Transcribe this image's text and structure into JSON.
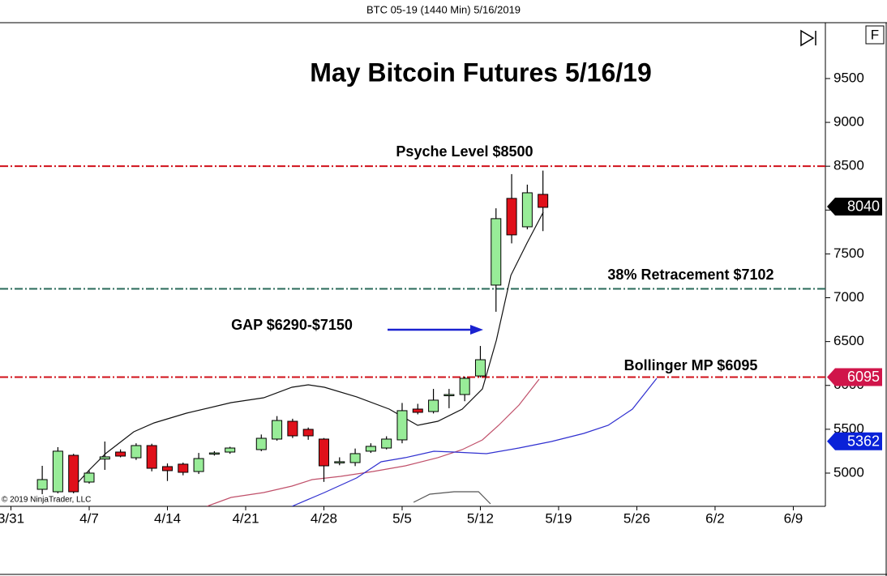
{
  "header": "BTC 05-19 (1440 Min)  5/16/2019",
  "ui": {
    "f_button": "F"
  },
  "copyright": "© 2019 NinjaTrader, LLC",
  "chart_data": {
    "type": "candlestick",
    "title": "May Bitcoin Futures 5/16/19",
    "open": [
      4815,
      4787,
      5203,
      4898,
      5160,
      5240,
      5175,
      5314,
      5074,
      5102,
      5018,
      5222,
      5240,
      null,
      5268,
      5388,
      5591,
      5499,
      5388,
      5120,
      5120,
      5250,
      5286,
      5379,
      5730,
      5702,
      5890,
      5896,
      6108,
      7144,
      8133,
      7809,
      8179
    ],
    "high": [
      5083,
      5296,
      5220,
      5030,
      5360,
      5270,
      5340,
      5335,
      5110,
      5120,
      5230,
      5250,
      5300,
      null,
      5440,
      5650,
      5620,
      5520,
      5400,
      5180,
      5280,
      5340,
      5420,
      5800,
      5790,
      5960,
      5960,
      6100,
      6450,
      8020,
      8410,
      8290,
      8450
    ],
    "low": [
      4760,
      4769,
      4769,
      4880,
      5037,
      5180,
      5150,
      5020,
      4910,
      4975,
      4990,
      5200,
      5220,
      null,
      5250,
      5370,
      5400,
      5380,
      4900,
      5090,
      5080,
      5230,
      5270,
      5340,
      5670,
      5680,
      5740,
      5820,
      6090,
      6840,
      7620,
      7780,
      7760
    ],
    "close": [
      4926,
      5250,
      4787,
      5000,
      5185,
      5194,
      5314,
      5055,
      5028,
      5009,
      5166,
      5230,
      5286,
      null,
      5397,
      5600,
      5425,
      5425,
      5083,
      5130,
      5222,
      5305,
      5388,
      5712,
      5693,
      5832,
      5896,
      6081,
      6293,
      7902,
      7717,
      8197,
      8031
    ],
    "up_color": "#98ec98",
    "down_color": "#e0101a",
    "xlim": [
      -2.7,
      50.05
    ],
    "xticks": [
      {
        "value": -2,
        "label": "3/31"
      },
      {
        "value": 3,
        "label": "4/7"
      },
      {
        "value": 8,
        "label": "4/14"
      },
      {
        "value": 13,
        "label": "4/21"
      },
      {
        "value": 18,
        "label": "4/28"
      },
      {
        "value": 23,
        "label": "5/5"
      },
      {
        "value": 28,
        "label": "5/12"
      },
      {
        "value": 33,
        "label": "5/19"
      },
      {
        "value": 38,
        "label": "5/26"
      },
      {
        "value": 43,
        "label": "6/2"
      },
      {
        "value": 48,
        "label": "6/9"
      }
    ],
    "ylim": [
      4621,
      10137
    ],
    "yticks": [
      5000,
      5500,
      6000,
      6500,
      7000,
      7500,
      8000,
      8500,
      9000,
      9500
    ],
    "indicators": [
      {
        "color": "#111111",
        "x": [
          2.07,
          3.01,
          4.04,
          5.85,
          7.15,
          9.22,
          12.07,
          14.15,
          15.96,
          17,
          18.03,
          20.1,
          22.18,
          23.99,
          25.28,
          26.84,
          28.13,
          29.02,
          29.95,
          30.98,
          32.02
        ],
        "values": [
          4852,
          5037,
          5222,
          5471,
          5573,
          5684,
          5804,
          5859,
          5979,
          6007,
          5979,
          5869,
          5730,
          5545,
          5591,
          5730,
          5961,
          6515,
          7255,
          7624,
          7975
        ]
      },
      {
        "color": "#555555",
        "x": [
          23.73,
          24.77,
          26.32,
          27.88,
          28.65
        ],
        "values": [
          4667,
          4760,
          4787,
          4787,
          4649
        ]
      },
      {
        "color": "#c0506a",
        "x": [
          10.52,
          12.07,
          14.15,
          15.96,
          17.25,
          19.07,
          21.14,
          23.21,
          25.28,
          26.84,
          28.13,
          29.17,
          30.47,
          31.76
        ],
        "values": [
          4621,
          4723,
          4778,
          4852,
          4926,
          4963,
          5018,
          5083,
          5176,
          5268,
          5379,
          5545,
          5776,
          6072
        ]
      },
      {
        "color": "#3030d0",
        "x": [
          15.96,
          18.03,
          20.1,
          21.66,
          23.21,
          25.03,
          26.32,
          28.39,
          30.47,
          32.54,
          34.61,
          36.17,
          37.72,
          39.27
        ],
        "values": [
          4621,
          4778,
          4945,
          5129,
          5176,
          5249,
          5240,
          5222,
          5286,
          5360,
          5453,
          5545,
          5730,
          6081
        ]
      }
    ],
    "levels": [
      {
        "value": 8500,
        "color": "#d0101a",
        "label": "Psyche Level $8500"
      },
      {
        "value": 7102,
        "color": "#2a6a5a",
        "label": "38% Retracement $7102"
      },
      {
        "value": 6095,
        "color": "#d0101a",
        "label": "Bollinger MP $6095"
      }
    ],
    "annotations": [
      {
        "text": "GAP $6290-$7150"
      }
    ],
    "price_tags": [
      {
        "value": 8040,
        "color": "#000000"
      },
      {
        "value": 6095,
        "color": "#d0154a"
      },
      {
        "value": 5362,
        "color": "#0a22d8"
      }
    ]
  }
}
